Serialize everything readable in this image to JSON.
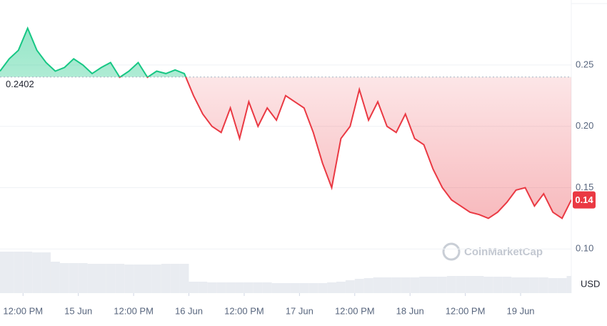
{
  "chart_data": {
    "type": "line",
    "x": [
      -5,
      -3,
      -1,
      1,
      3,
      5,
      7,
      9,
      11,
      13,
      15,
      17,
      19,
      21,
      23,
      25,
      27,
      29,
      31,
      33,
      35,
      37,
      39,
      41,
      43,
      45,
      47,
      49,
      51,
      53,
      55,
      57,
      59,
      61,
      63,
      65,
      67,
      69,
      71,
      73,
      75,
      77,
      79,
      81,
      83,
      85,
      87,
      89,
      91,
      93,
      95,
      97,
      99,
      101,
      103,
      105,
      107,
      109,
      111,
      113,
      115,
      117,
      119
    ],
    "values": [
      0.245,
      0.255,
      0.262,
      0.28,
      0.262,
      0.252,
      0.245,
      0.248,
      0.255,
      0.25,
      0.243,
      0.248,
      0.252,
      0.24,
      0.245,
      0.252,
      0.24,
      0.245,
      0.243,
      0.246,
      0.243,
      0.225,
      0.21,
      0.2,
      0.195,
      0.215,
      0.19,
      0.22,
      0.2,
      0.215,
      0.205,
      0.225,
      0.22,
      0.215,
      0.195,
      0.17,
      0.15,
      0.19,
      0.2,
      0.23,
      0.205,
      0.22,
      0.2,
      0.195,
      0.21,
      0.19,
      0.185,
      0.165,
      0.15,
      0.14,
      0.135,
      0.13,
      0.128,
      0.125,
      0.13,
      0.138,
      0.148,
      0.15,
      0.135,
      0.145,
      0.13,
      0.125,
      0.14
    ],
    "volume": [
      58,
      58,
      58,
      58,
      57,
      57,
      44,
      42,
      42,
      42,
      41,
      41,
      41,
      41,
      40,
      40,
      40,
      40,
      41,
      41,
      41,
      16,
      16,
      15,
      15,
      15,
      15,
      15,
      15,
      15,
      14,
      14,
      14,
      14,
      14,
      14,
      15,
      16,
      18,
      20,
      21,
      22,
      22,
      22,
      22,
      22,
      23,
      23,
      23,
      24,
      24,
      24,
      24,
      23,
      23,
      23,
      22,
      22,
      22,
      22,
      21,
      21,
      24
    ],
    "baseline": 0.2402,
    "current_price": 0.14,
    "up_color": "#16c784",
    "down_color": "#ea3943",
    "xlim": [
      -5,
      119
    ],
    "ylim": [
      0.064,
      0.303
    ],
    "xticks": [
      {
        "value": 0,
        "label": "12:00 PM"
      },
      {
        "value": 12,
        "label": "15 Jun"
      },
      {
        "value": 24,
        "label": "12:00 PM"
      },
      {
        "value": 36,
        "label": "16 Jun"
      },
      {
        "value": 48,
        "label": "12:00 PM"
      },
      {
        "value": 60,
        "label": "17 Jun"
      },
      {
        "value": 72,
        "label": "12:00 PM"
      },
      {
        "value": 84,
        "label": "18 Jun"
      },
      {
        "value": 96,
        "label": "12:00 PM"
      },
      {
        "value": 108,
        "label": "19 Jun"
      }
    ],
    "yticks": [
      0.25,
      {
        "value": 0.2,
        "label": "0.20"
      },
      0.15,
      {
        "value": 0.1,
        "label": "0.10"
      }
    ],
    "y_unit": "USD",
    "watermark": "CoinMarketCap",
    "grid": true
  }
}
